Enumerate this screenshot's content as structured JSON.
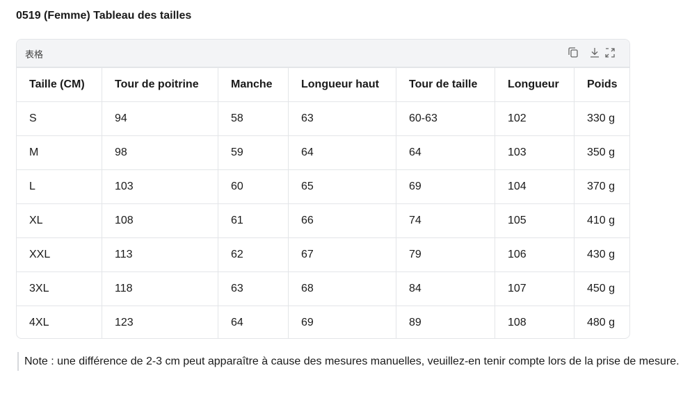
{
  "title": "0519 (Femme) Tableau des tailles",
  "table": {
    "label": "表格",
    "columns": [
      "Taille (CM)",
      "Tour de poitrine",
      "Manche",
      "Longueur haut",
      "Tour de taille",
      "Longueur",
      "Poids"
    ],
    "rows": [
      [
        "S",
        "94",
        "58",
        "63",
        "60-63",
        "102",
        "330 g"
      ],
      [
        "M",
        "98",
        "59",
        "64",
        "64",
        "103",
        "350 g"
      ],
      [
        "L",
        "103",
        "60",
        "65",
        "69",
        "104",
        "370 g"
      ],
      [
        "XL",
        "108",
        "61",
        "66",
        "74",
        "105",
        "410 g"
      ],
      [
        "XXL",
        "113",
        "62",
        "67",
        "79",
        "106",
        "430 g"
      ],
      [
        "3XL",
        "118",
        "63",
        "68",
        "84",
        "107",
        "450 g"
      ],
      [
        "4XL",
        "123",
        "64",
        "69",
        "89",
        "108",
        "480 g"
      ]
    ]
  },
  "note": "Note : une différence de 2-3 cm peut apparaître à cause des mesures manuelles, veuillez-en tenir compte lors de la prise de mesure."
}
